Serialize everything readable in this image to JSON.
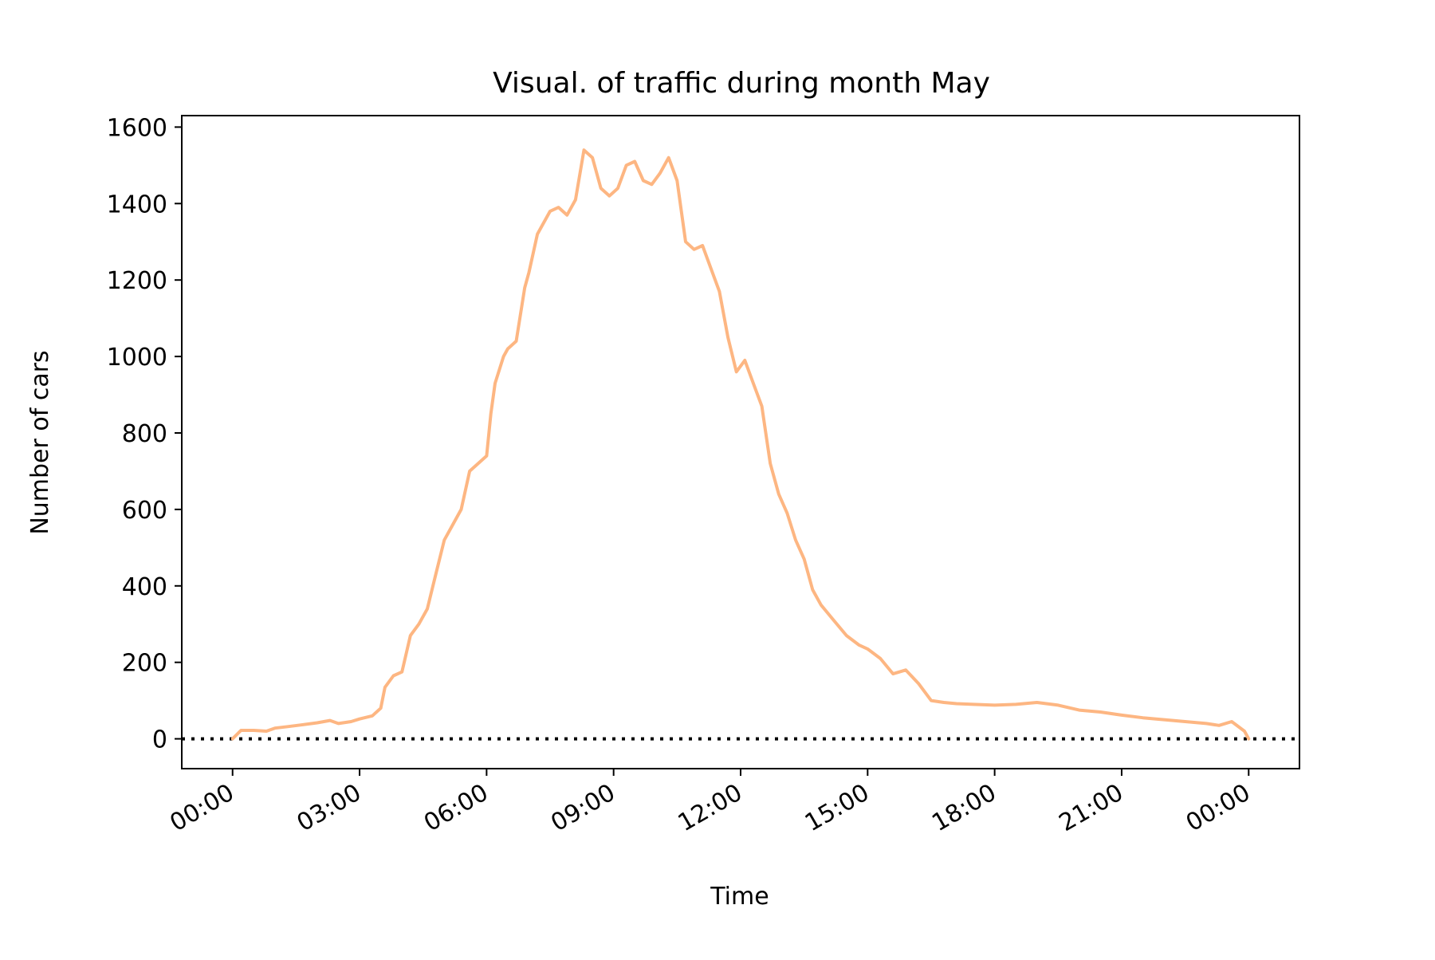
{
  "chart_data": {
    "type": "line",
    "title": "Visual. of traffic during month May",
    "xlabel": "Time",
    "ylabel": "Number of cars",
    "x_tick_labels": [
      "00:00",
      "03:00",
      "06:00",
      "09:00",
      "12:00",
      "15:00",
      "18:00",
      "21:00",
      "00:00"
    ],
    "x_tick_hours": [
      0,
      3,
      6,
      9,
      12,
      15,
      18,
      21,
      24
    ],
    "y_ticks": [
      0,
      200,
      400,
      600,
      800,
      1000,
      1200,
      1400,
      1600
    ],
    "xlim_hours": [
      -1.2,
      25.2
    ],
    "ylim": [
      -78,
      1630
    ],
    "grid": false,
    "reference_line": {
      "y": 0,
      "style": "dotted",
      "color": "#000000"
    },
    "series": [
      {
        "color": "#fdb682",
        "x_hours": [
          0.0,
          0.2,
          0.5,
          0.8,
          1.0,
          1.3,
          1.6,
          2.0,
          2.3,
          2.5,
          2.8,
          3.0,
          3.3,
          3.5,
          3.6,
          3.8,
          4.0,
          4.2,
          4.4,
          4.6,
          4.8,
          5.0,
          5.2,
          5.4,
          5.5,
          5.6,
          5.8,
          6.0,
          6.1,
          6.2,
          6.4,
          6.5,
          6.7,
          6.9,
          7.0,
          7.2,
          7.5,
          7.7,
          7.9,
          8.1,
          8.3,
          8.5,
          8.7,
          8.9,
          9.1,
          9.3,
          9.5,
          9.7,
          9.9,
          10.1,
          10.3,
          10.5,
          10.7,
          10.9,
          11.1,
          11.3,
          11.5,
          11.7,
          11.9,
          12.1,
          12.3,
          12.5,
          12.7,
          12.9,
          13.1,
          13.3,
          13.5,
          13.7,
          13.9,
          14.2,
          14.5,
          14.8,
          15.0,
          15.3,
          15.6,
          15.9,
          16.2,
          16.5,
          16.8,
          17.1,
          17.5,
          18.0,
          18.5,
          19.0,
          19.5,
          20.0,
          20.5,
          21.0,
          21.5,
          22.0,
          22.5,
          23.0,
          23.3,
          23.6,
          23.9,
          24.0
        ],
        "y": [
          0,
          22,
          22,
          20,
          28,
          32,
          36,
          42,
          48,
          40,
          45,
          52,
          60,
          80,
          135,
          165,
          175,
          270,
          300,
          340,
          430,
          520,
          560,
          600,
          650,
          700,
          720,
          740,
          850,
          930,
          1000,
          1020,
          1040,
          1180,
          1220,
          1320,
          1380,
          1390,
          1370,
          1410,
          1540,
          1520,
          1440,
          1420,
          1440,
          1500,
          1510,
          1460,
          1450,
          1480,
          1520,
          1460,
          1300,
          1280,
          1290,
          1230,
          1170,
          1050,
          960,
          990,
          930,
          870,
          720,
          640,
          590,
          520,
          470,
          390,
          350,
          310,
          270,
          245,
          235,
          210,
          170,
          180,
          145,
          100,
          95,
          92,
          90,
          88,
          90,
          95,
          88,
          75,
          70,
          62,
          55,
          50,
          45,
          40,
          35,
          45,
          20,
          0
        ]
      }
    ]
  }
}
